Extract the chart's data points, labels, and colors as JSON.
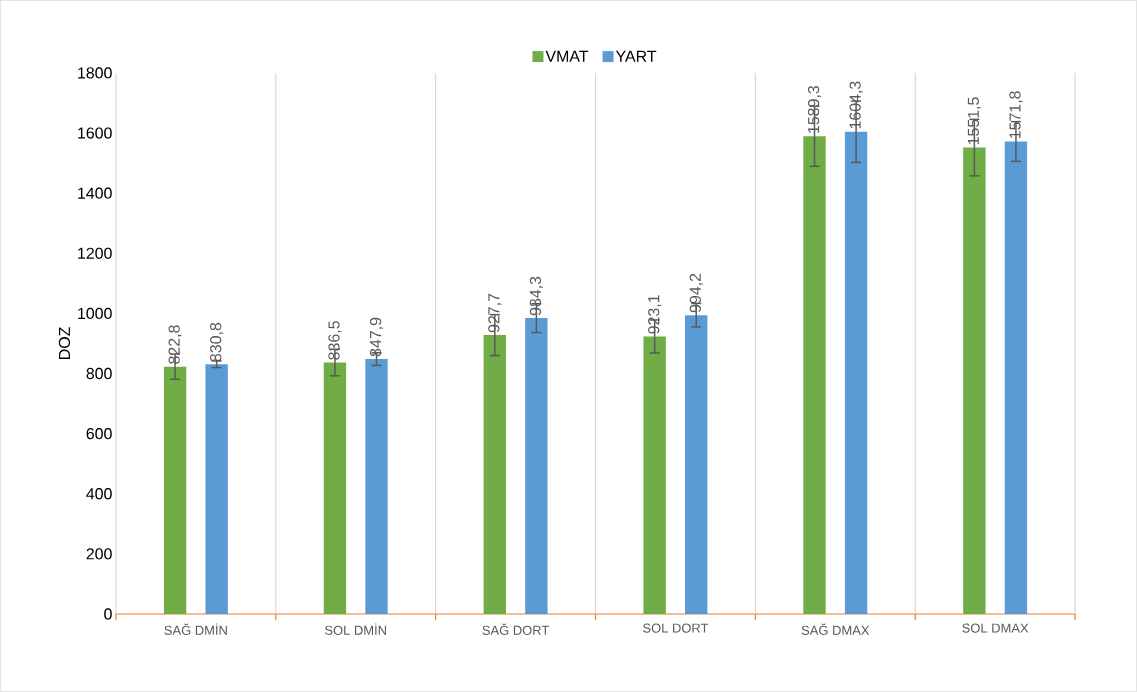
{
  "chart_data": {
    "type": "bar",
    "ylabel": "DOZ",
    "categories": [
      "SAĞ DMİN",
      "SOL DMİN",
      "SAĞ DORT",
      "SOL DORT",
      "SAĞ DMAX",
      "SOL DMAX"
    ],
    "series": [
      {
        "name": "VMAT",
        "color": "#70ad47",
        "values": [
          822.8,
          836.5,
          927.7,
          923.1,
          1589.3,
          1551.5
        ],
        "errors": [
          42,
          44,
          68,
          55,
          100,
          94
        ],
        "value_labels": [
          "822,8",
          "836,5",
          "927,7",
          "923,1",
          "1589,3",
          "1551,5"
        ]
      },
      {
        "name": "YART",
        "color": "#5b9bd5",
        "values": [
          830.8,
          847.9,
          984.3,
          994.2,
          1604.3,
          1571.8
        ],
        "errors": [
          11,
          21,
          48,
          39,
          102,
          66
        ],
        "value_labels": [
          "830,8",
          "847,9",
          "984,3",
          "994,2",
          "1604,3",
          "1571,8"
        ]
      }
    ],
    "ylim": [
      0,
      1800
    ],
    "yticks": [
      0,
      200,
      400,
      600,
      800,
      1000,
      1200,
      1400,
      1600,
      1800
    ],
    "grid": "x",
    "legend": "top"
  }
}
